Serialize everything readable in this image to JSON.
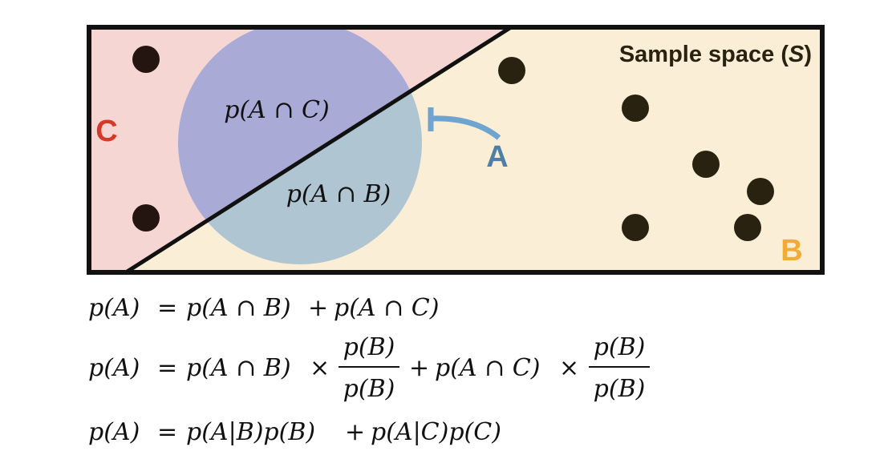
{
  "diagram": {
    "sample_space_label_prefix": "Sample space (",
    "sample_space_label_symbol": "S",
    "sample_space_label_suffix": ")",
    "region_c_label": "C",
    "region_b_label": "B",
    "event_a_label": "A",
    "intersection_ac_label": "p(A ∩ C)",
    "intersection_ab_label": "p(A ∩ B)",
    "colors": {
      "region_c_fill": "#f5d6d3",
      "region_b_fill": "#fbeed6",
      "circle_top_fill": "#a9abd6",
      "circle_bottom_fill": "#afc6d2",
      "label_c": "#d63a27",
      "label_b": "#f0ac36",
      "label_a": "#4f7fa6",
      "arrow": "#6ea4cf",
      "dot": "#2a2210",
      "border": "#111111"
    }
  },
  "equations": {
    "line1": {
      "lhs": "p(A)",
      "eq": "=",
      "term1": "p(A ∩ B)",
      "plus": "+",
      "term2": "p(A ∩ C)"
    },
    "line2": {
      "lhs": "p(A)",
      "eq": "=",
      "term1": "p(A ∩ B)",
      "times1": "×",
      "frac1_num": "p(B)",
      "frac1_den": "p(B)",
      "plus": "+",
      "term2": "p(A ∩ C)",
      "times2": "×",
      "frac2_num": "p(B)",
      "frac2_den": "p(B)"
    },
    "line3": {
      "lhs": "p(A)",
      "eq": "=",
      "term1": "p(A|B)p(B)",
      "plus": "+",
      "term2": "p(A|C)p(C)"
    }
  }
}
